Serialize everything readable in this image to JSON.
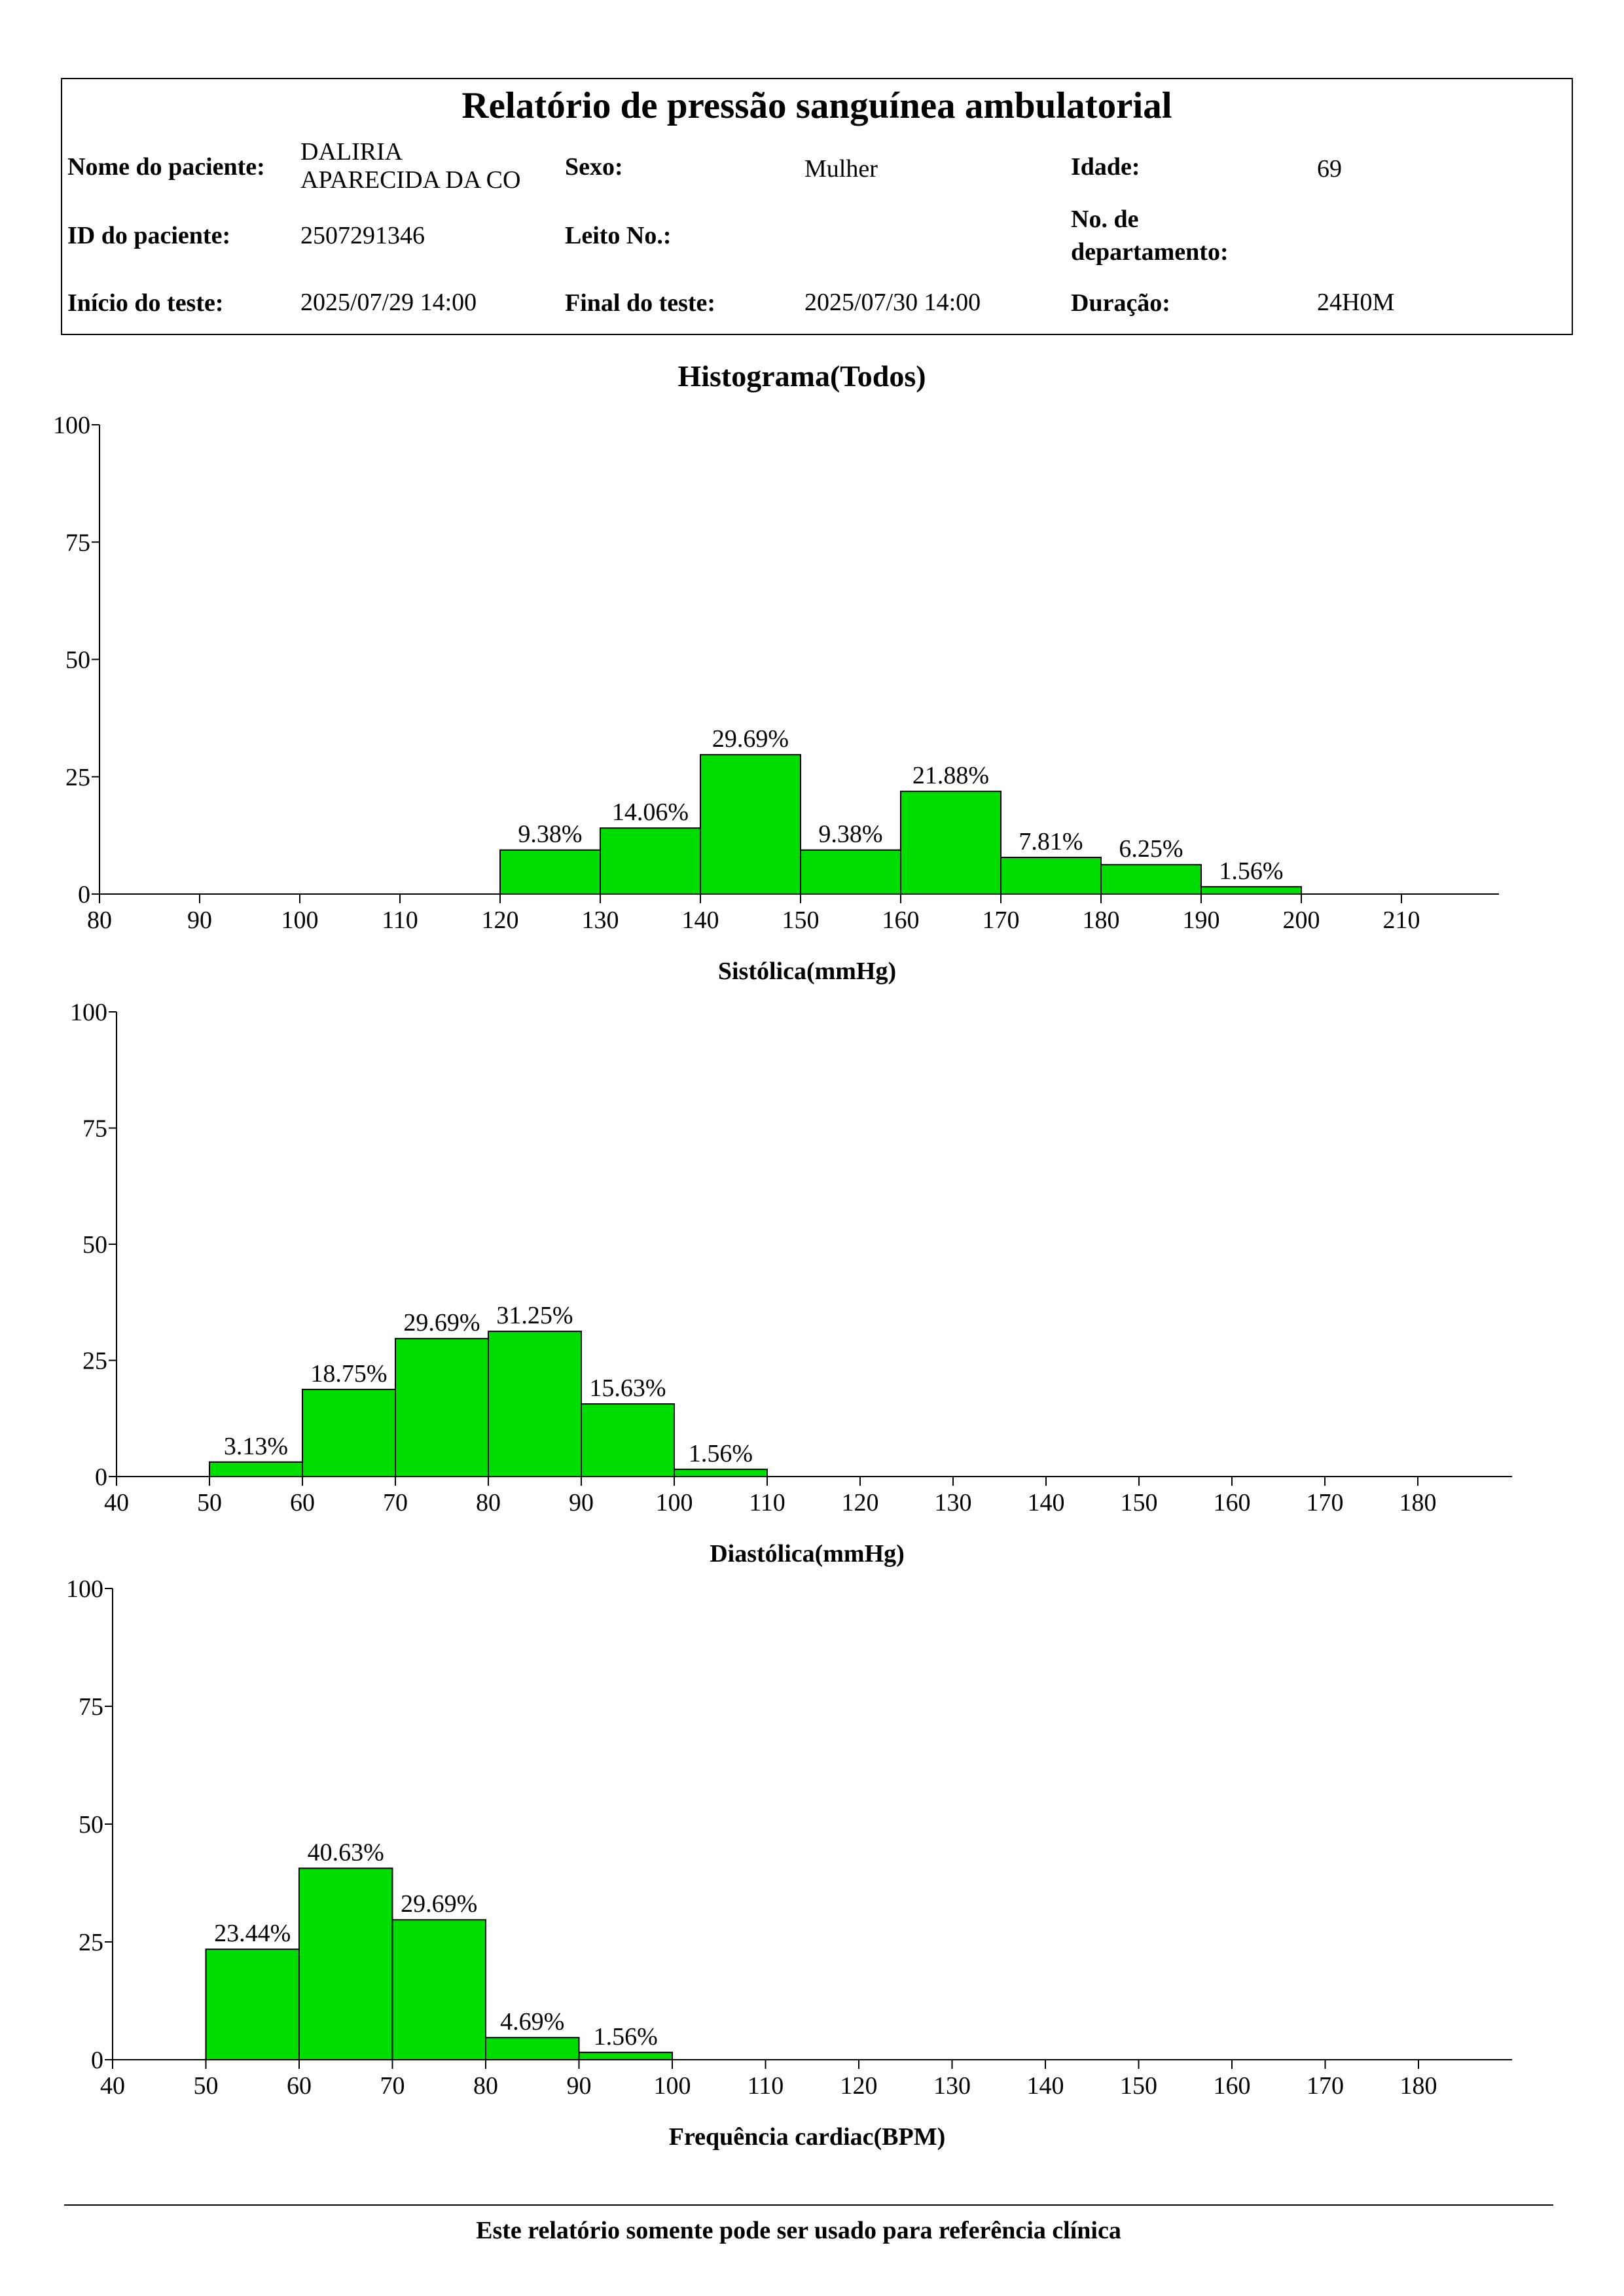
{
  "report": {
    "title": "Relatório de pressão sanguínea ambulatorial",
    "labels": {
      "name": "Nome do paciente:",
      "sex": "Sexo:",
      "age": "Idade:",
      "id": "ID do paciente:",
      "bed": "Leito No.:",
      "dept_line1": "No. de",
      "dept_line2": "departamento:",
      "start": "Início do teste:",
      "end": "Final do teste:",
      "duration": "Duração:"
    },
    "values": {
      "name_line1": "DALIRIA",
      "name_line2": "APARECIDA DA CO",
      "sex": "Mulher",
      "age": "69",
      "id": "2507291346",
      "bed": "",
      "dept": "",
      "start": "2025/07/29 14:00",
      "end": "2025/07/30 14:00",
      "duration": "24H0M"
    }
  },
  "section_title": "Histograma(Todos)",
  "footer": "Este relatório somente pode ser usado para referência clínica",
  "colors": {
    "bar": "#00DD00",
    "axis": "#000000"
  },
  "chart_data": [
    {
      "type": "bar",
      "xlabel": "Sistólica(mmHg)",
      "ylabel": "",
      "xlim": [
        80,
        220
      ],
      "xticks": [
        80,
        90,
        100,
        110,
        120,
        130,
        140,
        150,
        160,
        170,
        180,
        190,
        200,
        210
      ],
      "ylim": [
        0,
        100
      ],
      "yticks": [
        0,
        25,
        50,
        75,
        100
      ],
      "bins": [
        [
          120,
          130
        ],
        [
          130,
          140
        ],
        [
          140,
          150
        ],
        [
          150,
          160
        ],
        [
          160,
          170
        ],
        [
          170,
          180
        ],
        [
          180,
          190
        ],
        [
          190,
          200
        ]
      ],
      "values": [
        9.38,
        14.06,
        29.69,
        9.38,
        21.88,
        7.81,
        6.25,
        1.56
      ],
      "labels": [
        "9.38%",
        "14.06%",
        "29.69%",
        "9.38%",
        "21.88%",
        "7.81%",
        "6.25%",
        "1.56%"
      ]
    },
    {
      "type": "bar",
      "xlabel": "Diastólica(mmHg)",
      "ylabel": "",
      "xlim": [
        40,
        190
      ],
      "xticks": [
        40,
        50,
        60,
        70,
        80,
        90,
        100,
        110,
        120,
        130,
        140,
        150,
        160,
        170,
        180
      ],
      "ylim": [
        0,
        100
      ],
      "yticks": [
        0,
        25,
        50,
        75,
        100
      ],
      "bins": [
        [
          50,
          60
        ],
        [
          60,
          70
        ],
        [
          70,
          80
        ],
        [
          80,
          90
        ],
        [
          90,
          100
        ],
        [
          100,
          110
        ]
      ],
      "values": [
        3.13,
        18.75,
        29.69,
        31.25,
        15.63,
        1.56
      ],
      "labels": [
        "3.13%",
        "18.75%",
        "29.69%",
        "31.25%",
        "15.63%",
        "1.56%"
      ]
    },
    {
      "type": "bar",
      "xlabel": "Frequência cardiac(BPM)",
      "ylabel": "",
      "xlim": [
        40,
        190
      ],
      "xticks": [
        40,
        50,
        60,
        70,
        80,
        90,
        100,
        110,
        120,
        130,
        140,
        150,
        160,
        170,
        180
      ],
      "ylim": [
        0,
        100
      ],
      "yticks": [
        0,
        25,
        50,
        75,
        100
      ],
      "bins": [
        [
          50,
          60
        ],
        [
          60,
          70
        ],
        [
          70,
          80
        ],
        [
          80,
          90
        ],
        [
          90,
          100
        ]
      ],
      "values": [
        23.44,
        40.63,
        29.69,
        4.69,
        1.56
      ],
      "labels": [
        "23.44%",
        "40.63%",
        "29.69%",
        "4.69%",
        "1.56%"
      ]
    }
  ]
}
